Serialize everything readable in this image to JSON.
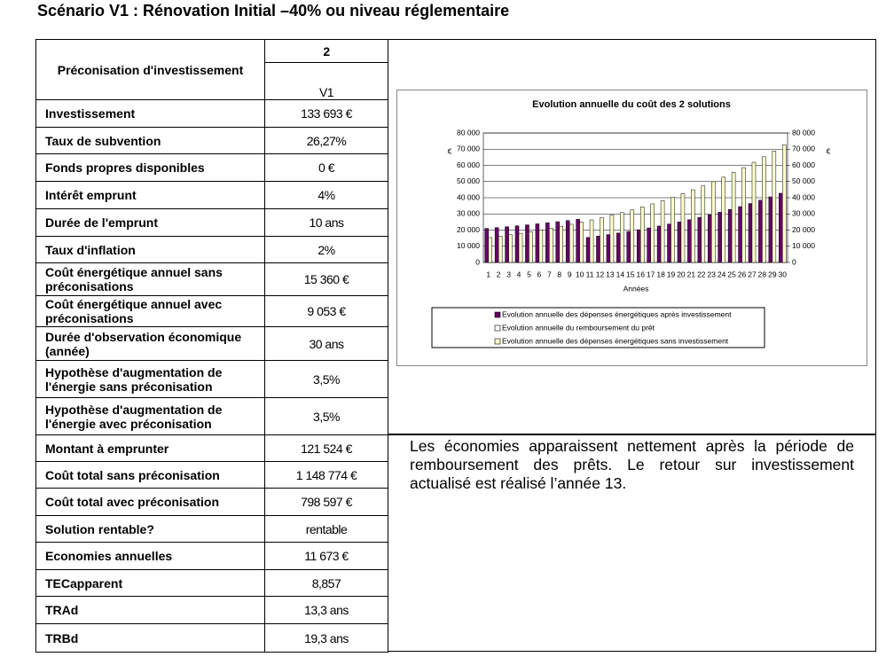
{
  "title": "Scénario V1 : Rénovation Initial –40% ou niveau réglementaire",
  "table": {
    "header": {
      "label": "Préconisation d'investissement",
      "number": "2",
      "version": "V1"
    },
    "rows": [
      [
        "Investissement",
        "133 693 €"
      ],
      [
        "Taux de subvention",
        "26,27%"
      ],
      [
        "Fonds propres disponibles",
        "0 €"
      ],
      [
        "Intérêt emprunt",
        "4%"
      ],
      [
        "Durée de l'emprunt",
        "10 ans"
      ],
      [
        "Taux d'inflation",
        "2%"
      ],
      [
        "Coût énergétique annuel sans préconisations",
        "15 360 €"
      ],
      [
        "Coût énergétique annuel avec préconisations",
        "9 053 €"
      ],
      [
        "Durée d'observation économique (année)",
        "30 ans"
      ],
      [
        "Hypothèse d'augmentation de l'énergie sans préconisation",
        "3,5%"
      ],
      [
        "Hypothèse d'augmentation de l'énergie avec préconisation",
        "3,5%"
      ],
      [
        "Montant à emprunter",
        "121 524 €"
      ],
      [
        "Coût total sans préconisation",
        "1 148 774 €"
      ],
      [
        "Coût total avec préconisation",
        "798 597 €"
      ],
      [
        "Solution rentable?",
        "rentable"
      ],
      [
        "Economies annuelles",
        "11 673 €"
      ],
      [
        "TECapparent",
        "8,857"
      ],
      [
        "TRAd",
        "13,3 ans"
      ],
      [
        "TRBd",
        "19,3 ans"
      ]
    ]
  },
  "comment": "Les économies apparaissent nettement après la période de remboursement des prêts. Le retour sur investissement actualisé est réalisé l’année 13.",
  "chart_data": {
    "type": "bar",
    "title": "Evolution annuelle du coût des 2 solutions",
    "x_label": "Années",
    "y_label": "€",
    "y2_label": "€",
    "categories": [
      1,
      2,
      3,
      4,
      5,
      6,
      7,
      8,
      9,
      10,
      11,
      12,
      13,
      14,
      15,
      16,
      17,
      18,
      19,
      20,
      21,
      22,
      23,
      24,
      25,
      26,
      27,
      28,
      29,
      30
    ],
    "series": [
      {
        "name": "Evolution annuelle des dépenses énergétiques après investissement",
        "color": "#660066",
        "values": [
          21050,
          21550,
          22080,
          22640,
          23220,
          23840,
          24490,
          25170,
          25890,
          26660,
          15460,
          16310,
          17210,
          18150,
          19150,
          20210,
          21320,
          22490,
          23730,
          25030,
          26410,
          27860,
          29390,
          31010,
          32710,
          34510,
          36410,
          38420,
          40530,
          42760
        ]
      },
      {
        "name": "Evolution annuelle du remboursement du prêt",
        "color": "#ffffff",
        "values": [
          null,
          null,
          null,
          null,
          null,
          null,
          null,
          null,
          null,
          null,
          null,
          null,
          null,
          null,
          null,
          null,
          null,
          null,
          null,
          null,
          null,
          null,
          null,
          null,
          null,
          null,
          null,
          null,
          null,
          null
        ]
      },
      {
        "name": "Evolution annuelle des dépenses énergétiques sans investissement",
        "color": "#ffffcc",
        "values": [
          15360,
          16200,
          17100,
          18000,
          19000,
          20100,
          21200,
          22400,
          23600,
          24900,
          26300,
          27700,
          29200,
          30800,
          32500,
          34300,
          36200,
          38200,
          40300,
          42500,
          44900,
          47300,
          49900,
          52700,
          55600,
          58600,
          61900,
          65300,
          68800,
          72600
        ]
      }
    ],
    "ylim": [
      0,
      80000
    ],
    "yticks": [
      0,
      {
        "value": 10000,
        "label": "10 000"
      },
      {
        "value": 20000,
        "label": "20 000"
      },
      {
        "value": 30000,
        "label": "30 000"
      },
      {
        "value": 40000,
        "label": "40 000"
      },
      {
        "value": 50000,
        "label": "50 000"
      },
      {
        "value": 60000,
        "label": "60 000"
      },
      {
        "value": 70000,
        "label": "70 000"
      },
      {
        "value": 80000,
        "label": "80 000"
      }
    ],
    "y2lim": [
      0,
      80000
    ],
    "y2ticks": [
      0,
      {
        "value": 10000,
        "label": "10 000"
      },
      {
        "value": 20000,
        "label": "20 000"
      },
      {
        "value": 30000,
        "label": "30 000"
      },
      {
        "value": 40000,
        "label": "40 000"
      },
      {
        "value": 50000,
        "label": "50 000"
      },
      {
        "value": 60000,
        "label": "60 000"
      },
      {
        "value": 70000,
        "label": "70 000"
      },
      {
        "value": 80000,
        "label": "80 000"
      }
    ],
    "grid": true
  }
}
